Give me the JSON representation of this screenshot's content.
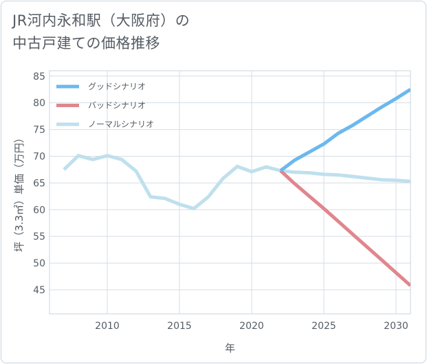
{
  "title_lines": [
    "JR河内永和駅（大阪府）の",
    "中古戸建ての価格推移"
  ],
  "chart_data": {
    "type": "line",
    "title": "JR河内永和駅（大阪府）の中古戸建ての価格推移",
    "xlabel": "年",
    "ylabel": "坪（3.3㎡）単価（万円）",
    "xlim": [
      2006,
      2031
    ],
    "ylim": [
      40.5,
      86
    ],
    "x_ticks": [
      2010,
      2015,
      2020,
      2025,
      2030
    ],
    "y_ticks": [
      45,
      50,
      55,
      60,
      65,
      70,
      75,
      80,
      85
    ],
    "grid": true,
    "legend_position": "top-left",
    "series": [
      {
        "name": "グッドシナリオ",
        "color": "#6bb8ee",
        "x": [
          2022,
          2023,
          2024,
          2025,
          2026,
          2027,
          2028,
          2029,
          2030,
          2031
        ],
        "y": [
          67.3,
          69.3,
          70.8,
          72.3,
          74.3,
          75.8,
          77.5,
          79.2,
          80.8,
          82.5
        ]
      },
      {
        "name": "バッドシナリオ",
        "color": "#e0868d",
        "x": [
          2022,
          2023,
          2024,
          2025,
          2026,
          2027,
          2028,
          2029,
          2030,
          2031
        ],
        "y": [
          67.3,
          64.8,
          62.5,
          60.2,
          57.8,
          55.4,
          53.0,
          50.6,
          48.2,
          45.8
        ]
      },
      {
        "name": "ノーマルシナリオ",
        "color": "#bfe0ed",
        "x": [
          2007,
          2008,
          2009,
          2010,
          2011,
          2012,
          2013,
          2014,
          2015,
          2016,
          2017,
          2018,
          2019,
          2020,
          2021,
          2022,
          2023,
          2024,
          2025,
          2026,
          2027,
          2028,
          2029,
          2030,
          2031
        ],
        "y": [
          67.5,
          70.1,
          69.4,
          70.1,
          69.4,
          67.2,
          62.4,
          62.1,
          61.0,
          60.2,
          62.4,
          65.8,
          68.1,
          67.1,
          68.0,
          67.3,
          67.0,
          66.9,
          66.6,
          66.5,
          66.2,
          65.9,
          65.6,
          65.5,
          65.3
        ]
      }
    ]
  }
}
